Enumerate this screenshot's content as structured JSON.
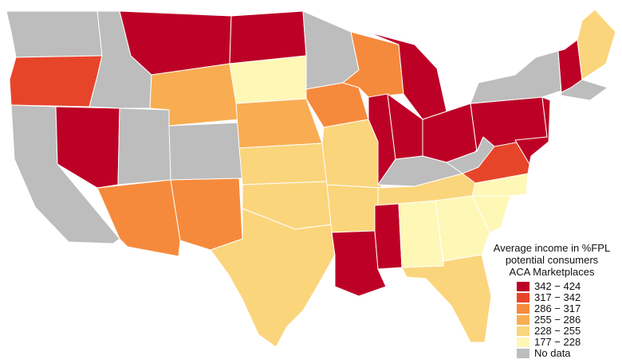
{
  "legend": {
    "title_lines": [
      "Average income in %FPL",
      "potential consumers",
      "ACA Marketplaces"
    ],
    "items": [
      {
        "label": "342 − 424",
        "color": "#bd0026"
      },
      {
        "label": "317 − 342",
        "color": "#e7452a"
      },
      {
        "label": "286 − 317",
        "color": "#f68a3c"
      },
      {
        "label": "255 − 286",
        "color": "#f9ad52"
      },
      {
        "label": "228 − 255",
        "color": "#fbd57c"
      },
      {
        "label": "177 − 228",
        "color": "#fef7b6"
      },
      {
        "label": "No data",
        "color": "#bdbdbd"
      }
    ]
  },
  "regions": [
    {
      "name": "washington",
      "cls": 6
    },
    {
      "name": "oregon",
      "cls": 1
    },
    {
      "name": "california",
      "cls": 6
    },
    {
      "name": "nevada",
      "cls": 0
    },
    {
      "name": "idaho",
      "cls": 6
    },
    {
      "name": "utah",
      "cls": 6
    },
    {
      "name": "arizona",
      "cls": 2
    },
    {
      "name": "montana",
      "cls": 0
    },
    {
      "name": "wyoming",
      "cls": 3
    },
    {
      "name": "colorado",
      "cls": 6
    },
    {
      "name": "new-mexico",
      "cls": 2
    },
    {
      "name": "north-dakota",
      "cls": 0
    },
    {
      "name": "south-dakota",
      "cls": 5
    },
    {
      "name": "nebraska",
      "cls": 3
    },
    {
      "name": "kansas",
      "cls": 4
    },
    {
      "name": "oklahoma",
      "cls": 4
    },
    {
      "name": "texas",
      "cls": 4
    },
    {
      "name": "minnesota",
      "cls": 6
    },
    {
      "name": "iowa",
      "cls": 2
    },
    {
      "name": "missouri",
      "cls": 4
    },
    {
      "name": "arkansas",
      "cls": 4
    },
    {
      "name": "louisiana",
      "cls": 0
    },
    {
      "name": "wisconsin",
      "cls": 2
    },
    {
      "name": "illinois",
      "cls": 0
    },
    {
      "name": "michigan",
      "cls": 0
    },
    {
      "name": "indiana",
      "cls": 0
    },
    {
      "name": "ohio",
      "cls": 0
    },
    {
      "name": "kentucky",
      "cls": 6
    },
    {
      "name": "tennessee",
      "cls": 4
    },
    {
      "name": "mississippi",
      "cls": 0
    },
    {
      "name": "alabama",
      "cls": 5
    },
    {
      "name": "georgia",
      "cls": 5
    },
    {
      "name": "florida",
      "cls": 4
    },
    {
      "name": "south-carolina",
      "cls": 5
    },
    {
      "name": "north-carolina",
      "cls": 5
    },
    {
      "name": "virginia",
      "cls": 1
    },
    {
      "name": "west-virginia",
      "cls": 6
    },
    {
      "name": "pennsylvania",
      "cls": 0
    },
    {
      "name": "new-york",
      "cls": 6
    },
    {
      "name": "new-jersey",
      "cls": 0
    },
    {
      "name": "new-england",
      "cls": 6
    },
    {
      "name": "new-hampshire",
      "cls": 0
    },
    {
      "name": "maine",
      "cls": 4
    }
  ]
}
